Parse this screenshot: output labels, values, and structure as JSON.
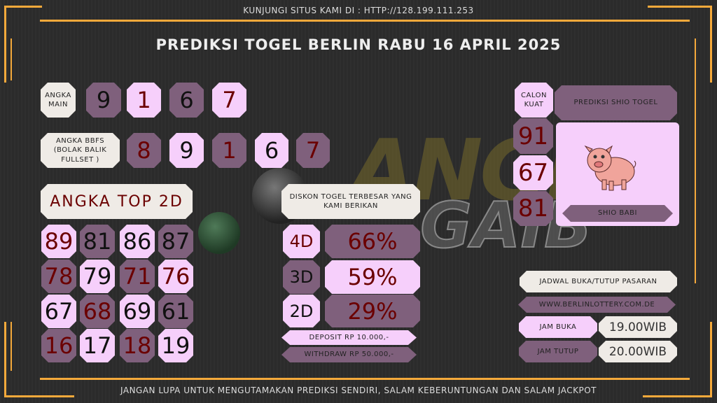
{
  "header": {
    "visit_text": "KUNJUNGI SITUS KAMI DI : HTTP://128.199.111.253",
    "title": "PREDIKSI TOGEL BERLIN RABU 16 APRIL 2025"
  },
  "watermark": {
    "line1": "ANGKA",
    "line2": "GAIB"
  },
  "angka_main": {
    "label": "ANGKA MAIN",
    "digits": [
      "9",
      "1",
      "6",
      "7"
    ]
  },
  "bbfs": {
    "label": "ANGKA BBFS (BOLAK BALIK FULLSET )",
    "digits": [
      "8",
      "9",
      "1",
      "6",
      "7"
    ]
  },
  "top2d": {
    "label": "ANGKA TOP 2D",
    "numbers": [
      "89",
      "81",
      "86",
      "87",
      "78",
      "79",
      "71",
      "76",
      "67",
      "68",
      "69",
      "61",
      "16",
      "17",
      "18",
      "19"
    ]
  },
  "diskon": {
    "label": "DISKON TOGEL TERBESAR YANG KAMI BERIKAN",
    "rows": [
      {
        "type": "4D",
        "pct": "66%"
      },
      {
        "type": "3D",
        "pct": "59%"
      },
      {
        "type": "2D",
        "pct": "29%"
      }
    ],
    "deposit": "DEPOSIT RP 10.000,-",
    "withdraw": "WITHDRAW RP 50.000,-"
  },
  "shio": {
    "calon_label": "CALON KUAT",
    "title": "PREDIKSI SHIO TOGEL",
    "numbers": [
      "91",
      "67",
      "81"
    ],
    "name": "SHIO BABI",
    "icon": "pig-icon"
  },
  "jadwal": {
    "title": "JADWAL BUKA/TUTUP PASARAN",
    "url": "WWW.BERLINLOTTERY.COM.DE",
    "buka_label": "JAM BUKA",
    "buka": "19.00WIB",
    "tutup_label": "JAM TUTUP",
    "tutup": "20.00WIB"
  },
  "footer": {
    "text": "JANGAN LUPA UNTUK MENGUTAMAKAN PREDIKSI SENDIRI, SALAM KEBERUNTUNGAN DAN SALAM JACKPOT"
  },
  "colors": {
    "accent": "#f4a93b",
    "pink": "#f6cffb",
    "purple": "#7f607c",
    "cream": "#efebe6",
    "dark_red": "#6b0000",
    "background": "#2c2c2c"
  }
}
